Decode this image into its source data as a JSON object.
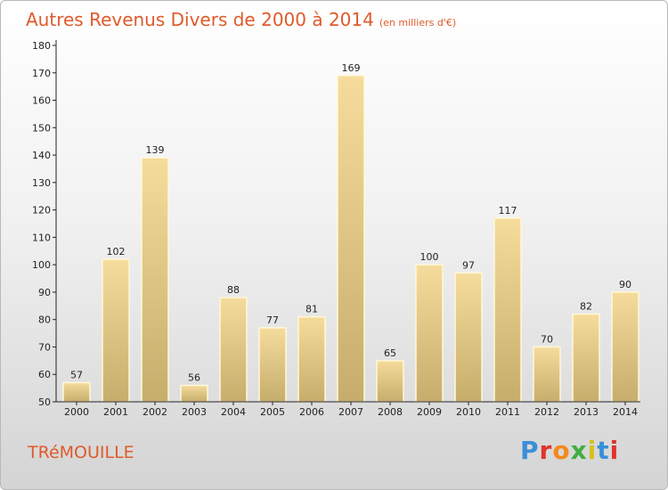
{
  "header": {
    "title": "Autres Revenus Divers de 2000 à 2014",
    "subtitle": "(en milliers d'€)"
  },
  "footer": {
    "commune": "TRéMOUILLE",
    "brand": "Proxiti",
    "brand_colors": [
      "#3a8fd8",
      "#e0332d",
      "#f28a1b",
      "#3fae3f",
      "#d4c21a",
      "#3a8fd8",
      "#e0332d"
    ]
  },
  "colors": {
    "bar_fill_top": "#f6dc9c",
    "bar_fill_bottom": "#c7ad6c",
    "bar_stroke": "#fff8d8",
    "axis": "#222222",
    "title": "#e05a2b"
  },
  "chart_data": {
    "type": "bar",
    "title": "Autres Revenus Divers de 2000 à 2014",
    "subtitle": "(en milliers d'€)",
    "categories": [
      "2000",
      "2001",
      "2002",
      "2003",
      "2004",
      "2005",
      "2006",
      "2007",
      "2008",
      "2009",
      "2010",
      "2011",
      "2012",
      "2013",
      "2014"
    ],
    "values": [
      57,
      102,
      139,
      56,
      88,
      77,
      81,
      169,
      65,
      100,
      97,
      117,
      70,
      82,
      90
    ],
    "ylim": [
      50,
      180
    ],
    "yticks": [
      50,
      60,
      70,
      80,
      90,
      100,
      110,
      120,
      130,
      140,
      150,
      160,
      170,
      180
    ],
    "grid": false,
    "legend": "none",
    "xlabel": "",
    "ylabel": ""
  }
}
